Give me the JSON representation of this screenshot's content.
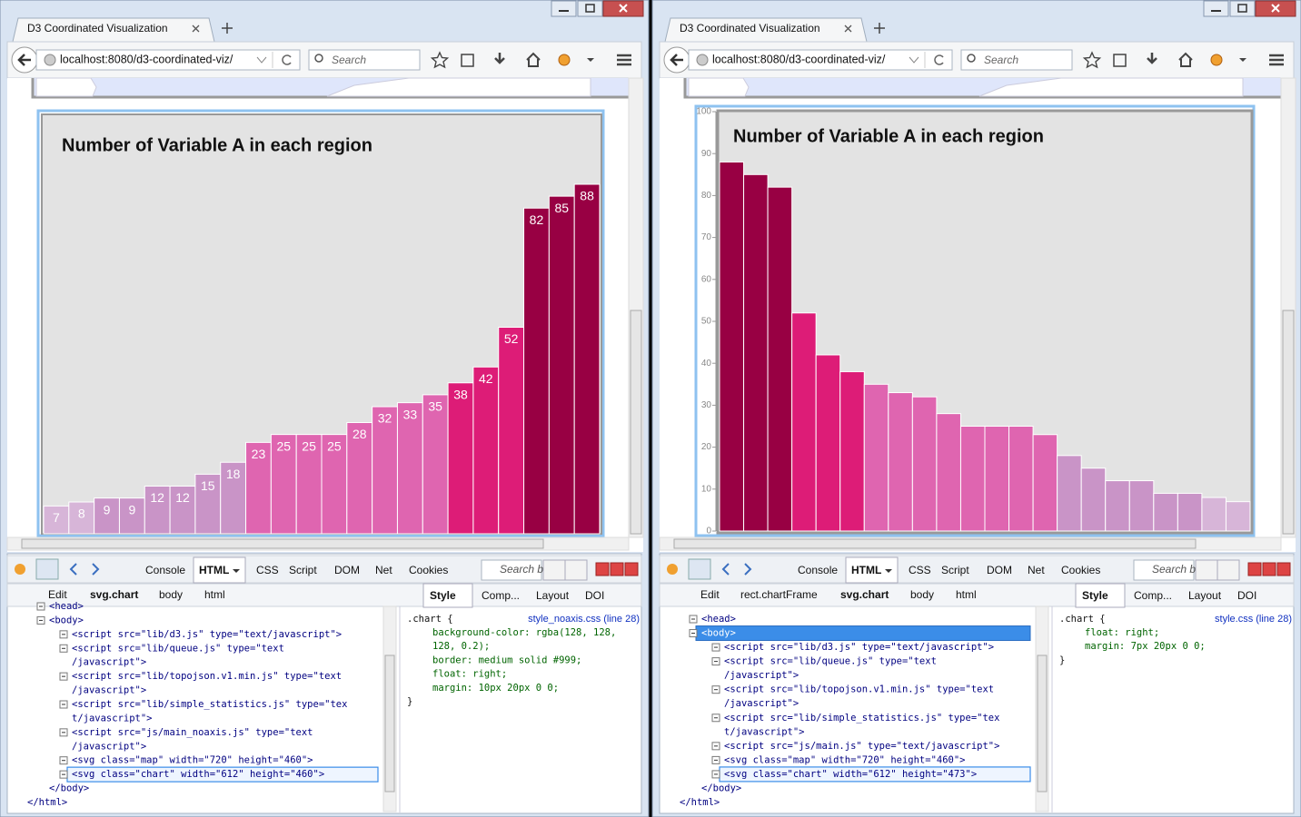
{
  "windows": [
    {
      "tab_title": "D3 Coordinated Visualization",
      "url": "localhost:8080/d3-coordinated-viz/",
      "search": "Search",
      "chart": {
        "type": "bar",
        "title": "Number of Variable A in each region",
        "values": [
          7,
          8,
          9,
          9,
          12,
          12,
          15,
          18,
          23,
          25,
          25,
          25,
          28,
          32,
          33,
          35,
          38,
          42,
          52,
          82,
          85,
          88
        ],
        "colors": [
          "#d7b5d8",
          "#d7b5d8",
          "#c994c7",
          "#c994c7",
          "#c994c7",
          "#c994c7",
          "#c994c7",
          "#c994c7",
          "#df65b0",
          "#df65b0",
          "#df65b0",
          "#df65b0",
          "#df65b0",
          "#df65b0",
          "#df65b0",
          "#df65b0",
          "#dd1c77",
          "#dd1c77",
          "#dd1c77",
          "#980043",
          "#980043",
          "#980043"
        ]
      },
      "devtools": {
        "tabs": [
          "Console",
          "HTML",
          "CSS",
          "Script",
          "DOM",
          "Net",
          "Cookies"
        ],
        "search": "Search b",
        "edit": "Edit",
        "breadcrumbs": [
          "svg.chart",
          "body",
          "html"
        ],
        "side_tabs": [
          "Style",
          "Comp...",
          "Layout",
          "DOI"
        ],
        "html_lines": [
          "<head>",
          "<body>",
          "<script src=\"lib/d3.js\" type=\"text/javascript\">",
          "<script src=\"lib/queue.js\" type=\"text",
          "/javascript\">",
          "<script src=\"lib/topojson.v1.min.js\" type=\"text",
          "/javascript\">",
          "<script src=\"lib/simple_statistics.js\" type=\"tex",
          "t/javascript\">",
          "<script src=\"js/main_noaxis.js\" type=\"text",
          "/javascript\">",
          "<svg class=\"map\" width=\"720\" height=\"460\">",
          "<svg class=\"chart\" width=\"612\" height=\"460\">",
          "</body>",
          "</html>"
        ],
        "css": {
          "selector": ".chart {",
          "source": "style_noaxis.css (line 28)",
          "lines": [
            "background-color: rgba(128, 128,",
            "128, 0.2);",
            "border: medium solid #999;",
            "float: right;",
            "margin: 10px 20px 0 0;"
          ],
          "close": "}"
        }
      }
    },
    {
      "tab_title": "D3 Coordinated Visualization",
      "url": "localhost:8080/d3-coordinated-viz/",
      "search": "Search",
      "chart": {
        "type": "bar",
        "title": "Number of Variable A in each region",
        "values": [
          88,
          85,
          82,
          52,
          42,
          38,
          35,
          33,
          32,
          28,
          25,
          25,
          25,
          23,
          18,
          15,
          12,
          12,
          9,
          9,
          8,
          7
        ],
        "colors": [
          "#980043",
          "#980043",
          "#980043",
          "#dd1c77",
          "#dd1c77",
          "#dd1c77",
          "#df65b0",
          "#df65b0",
          "#df65b0",
          "#df65b0",
          "#df65b0",
          "#df65b0",
          "#df65b0",
          "#df65b0",
          "#c994c7",
          "#c994c7",
          "#c994c7",
          "#c994c7",
          "#c994c7",
          "#c994c7",
          "#d7b5d8",
          "#d7b5d8"
        ],
        "ylim": [
          0,
          100
        ],
        "yticks": [
          0,
          10,
          20,
          30,
          40,
          50,
          60,
          70,
          80,
          90,
          100
        ]
      },
      "devtools": {
        "tabs": [
          "Console",
          "HTML",
          "CSS",
          "Script",
          "DOM",
          "Net",
          "Cookies"
        ],
        "search": "Search b",
        "edit": "Edit",
        "breadcrumbs": [
          "rect.chartFrame",
          "svg.chart",
          "body",
          "html"
        ],
        "side_tabs": [
          "Style",
          "Comp...",
          "Layout",
          "DOI"
        ],
        "html_lines": [
          "<head>",
          "<body>",
          "<script src=\"lib/d3.js\" type=\"text/javascript\">",
          "<script src=\"lib/queue.js\" type=\"text",
          "/javascript\">",
          "<script src=\"lib/topojson.v1.min.js\" type=\"text",
          "/javascript\">",
          "<script src=\"lib/simple_statistics.js\" type=\"tex",
          "t/javascript\">",
          "<script src=\"js/main.js\" type=\"text/javascript\">",
          "<svg class=\"map\" width=\"720\" height=\"460\">",
          "<svg class=\"chart\" width=\"612\" height=\"473\">",
          "</body>",
          "</html>"
        ],
        "css": {
          "selector": ".chart {",
          "source": "style.css (line 28)",
          "lines": [
            "float: right;",
            "margin: 7px 20px 0 0;"
          ],
          "close": "}"
        }
      }
    }
  ]
}
